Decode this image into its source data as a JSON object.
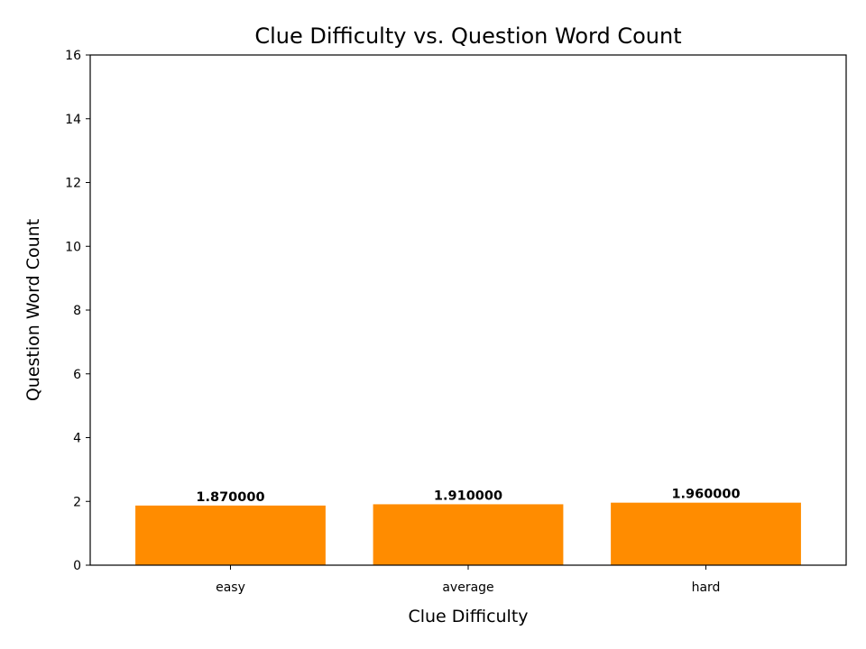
{
  "chart_data": {
    "type": "bar",
    "title": "Clue Difficulty vs. Question Word Count",
    "xlabel": "Clue Difficulty",
    "ylabel": "Question Word Count",
    "categories": [
      "easy",
      "average",
      "hard"
    ],
    "values": [
      1.87,
      1.91,
      1.96
    ],
    "value_labels": [
      "1.870000",
      "1.910000",
      "1.960000"
    ],
    "ylim": [
      0,
      16
    ],
    "yticks": [
      0,
      2,
      4,
      6,
      8,
      10,
      12,
      14,
      16
    ],
    "bar_color": "#FF8C00",
    "grid": false
  }
}
